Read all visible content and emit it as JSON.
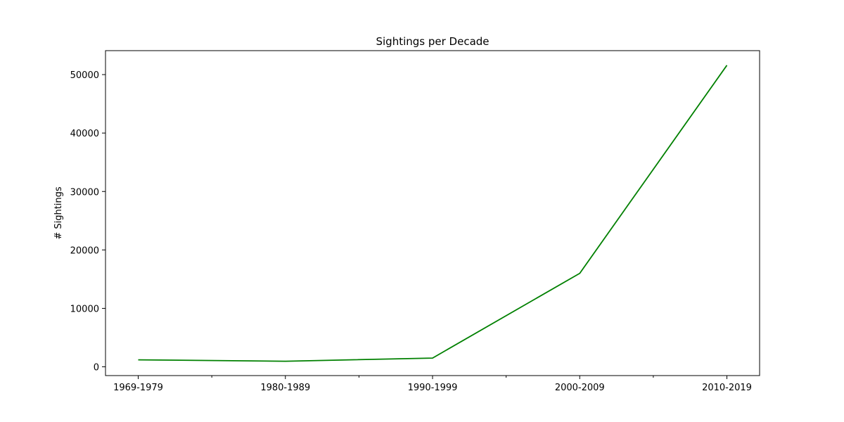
{
  "chart_data": {
    "type": "line",
    "title": "Sightings per Decade",
    "xlabel": "",
    "ylabel": "# Sightings",
    "categories": [
      "1969-1979",
      "1980-1989",
      "1990-1999",
      "2000-2009",
      "2010-2019"
    ],
    "series": [
      {
        "values": [
          1200,
          950,
          1500,
          16000,
          51600
        ]
      }
    ],
    "ylim": [
      -1500,
      54100
    ],
    "yticks": [
      0,
      10000,
      20000,
      30000,
      40000,
      50000
    ],
    "ytick_labels": [
      "0",
      "10000",
      "20000",
      "30000",
      "40000",
      "50000"
    ],
    "minor_xticks_between_categories": true,
    "grid": false,
    "legend": "none",
    "line_color": "#008000"
  }
}
